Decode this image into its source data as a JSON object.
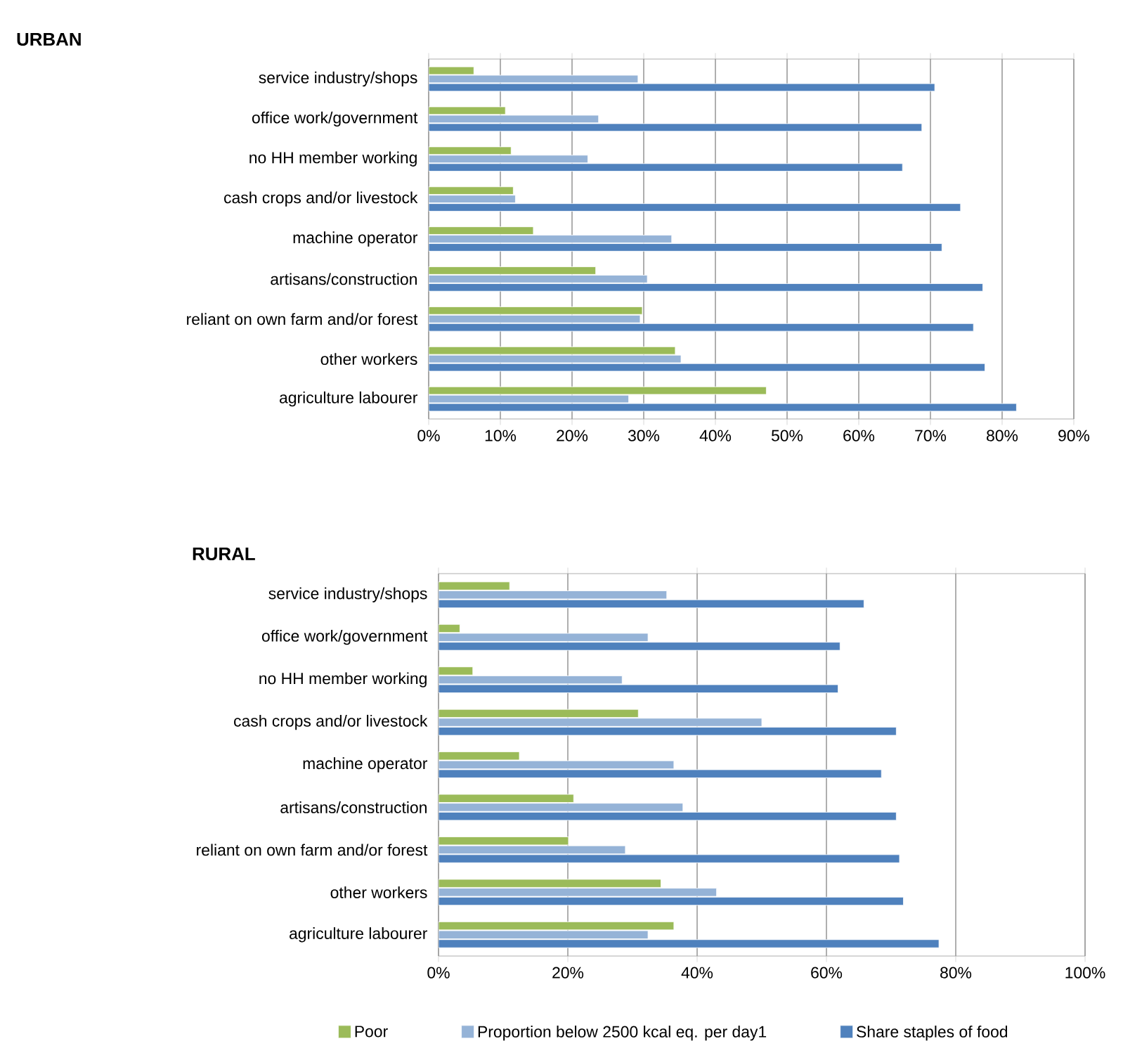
{
  "chart_data": [
    {
      "type": "bar",
      "orientation": "horizontal",
      "title": "URBAN",
      "grid": "x",
      "categories": [
        "service industry/shops",
        "office work/government",
        "no HH member working",
        "cash crops and/or livestock",
        "machine operator",
        "artisans/construction",
        "reliant on own farm and/or forest",
        "other workers",
        "agriculture labourer"
      ],
      "xlim": [
        0,
        90
      ],
      "xticks": [
        {
          "value": 0,
          "label": "0%"
        },
        {
          "value": 10,
          "label": "10%"
        },
        {
          "value": 20,
          "label": "20%"
        },
        {
          "value": 30,
          "label": "30%"
        },
        {
          "value": 40,
          "label": "40%"
        },
        {
          "value": 50,
          "label": "50%"
        },
        {
          "value": 60,
          "label": "60%"
        },
        {
          "value": 70,
          "label": "70%"
        },
        {
          "value": 80,
          "label": "80%"
        },
        {
          "value": 90,
          "label": "90%"
        }
      ],
      "series": [
        {
          "color": "#9bbb59",
          "values": [
            6.3,
            10.7,
            11.5,
            11.8,
            14.6,
            23.3,
            29.8,
            34.4,
            47.1
          ]
        },
        {
          "color": "#95b3d7",
          "values": [
            29.2,
            23.7,
            22.2,
            12.1,
            33.9,
            30.5,
            29.5,
            35.2,
            27.9
          ]
        },
        {
          "color": "#4f81bd",
          "values": [
            70.6,
            68.8,
            66.1,
            74.2,
            71.6,
            77.3,
            76.0,
            77.6,
            82.0
          ]
        }
      ]
    },
    {
      "type": "bar",
      "orientation": "horizontal",
      "title": "RURAL",
      "grid": "x",
      "legend": "bottom",
      "categories": [
        "service industry/shops",
        "office work/government",
        "no HH member working",
        "cash crops and/or livestock",
        "machine operator",
        "artisans/construction",
        "reliant on own farm and/or forest",
        "other workers",
        "agriculture labourer"
      ],
      "xlim": [
        0,
        100
      ],
      "xticks": [
        {
          "value": 0,
          "label": "0%"
        },
        {
          "value": 20,
          "label": "20%"
        },
        {
          "value": 40,
          "label": "40%"
        },
        {
          "value": 60,
          "label": "60%"
        },
        {
          "value": 80,
          "label": "80%"
        },
        {
          "value": 100,
          "label": "100%"
        }
      ],
      "series": [
        {
          "name": "Poor",
          "color": "#9bbb59",
          "values": [
            11.0,
            3.3,
            5.3,
            30.9,
            12.5,
            20.9,
            20.1,
            34.4,
            36.4
          ]
        },
        {
          "name": "Proportion below 2500  kcal  eq. per day1",
          "color": "#95b3d7",
          "values": [
            35.3,
            32.4,
            28.4,
            50.0,
            36.4,
            37.8,
            28.9,
            43.0,
            32.4
          ]
        },
        {
          "name": "Share staples of food",
          "color": "#4f81bd",
          "values": [
            65.8,
            62.1,
            61.8,
            70.8,
            68.5,
            70.8,
            71.3,
            71.9,
            77.4
          ]
        }
      ]
    }
  ]
}
